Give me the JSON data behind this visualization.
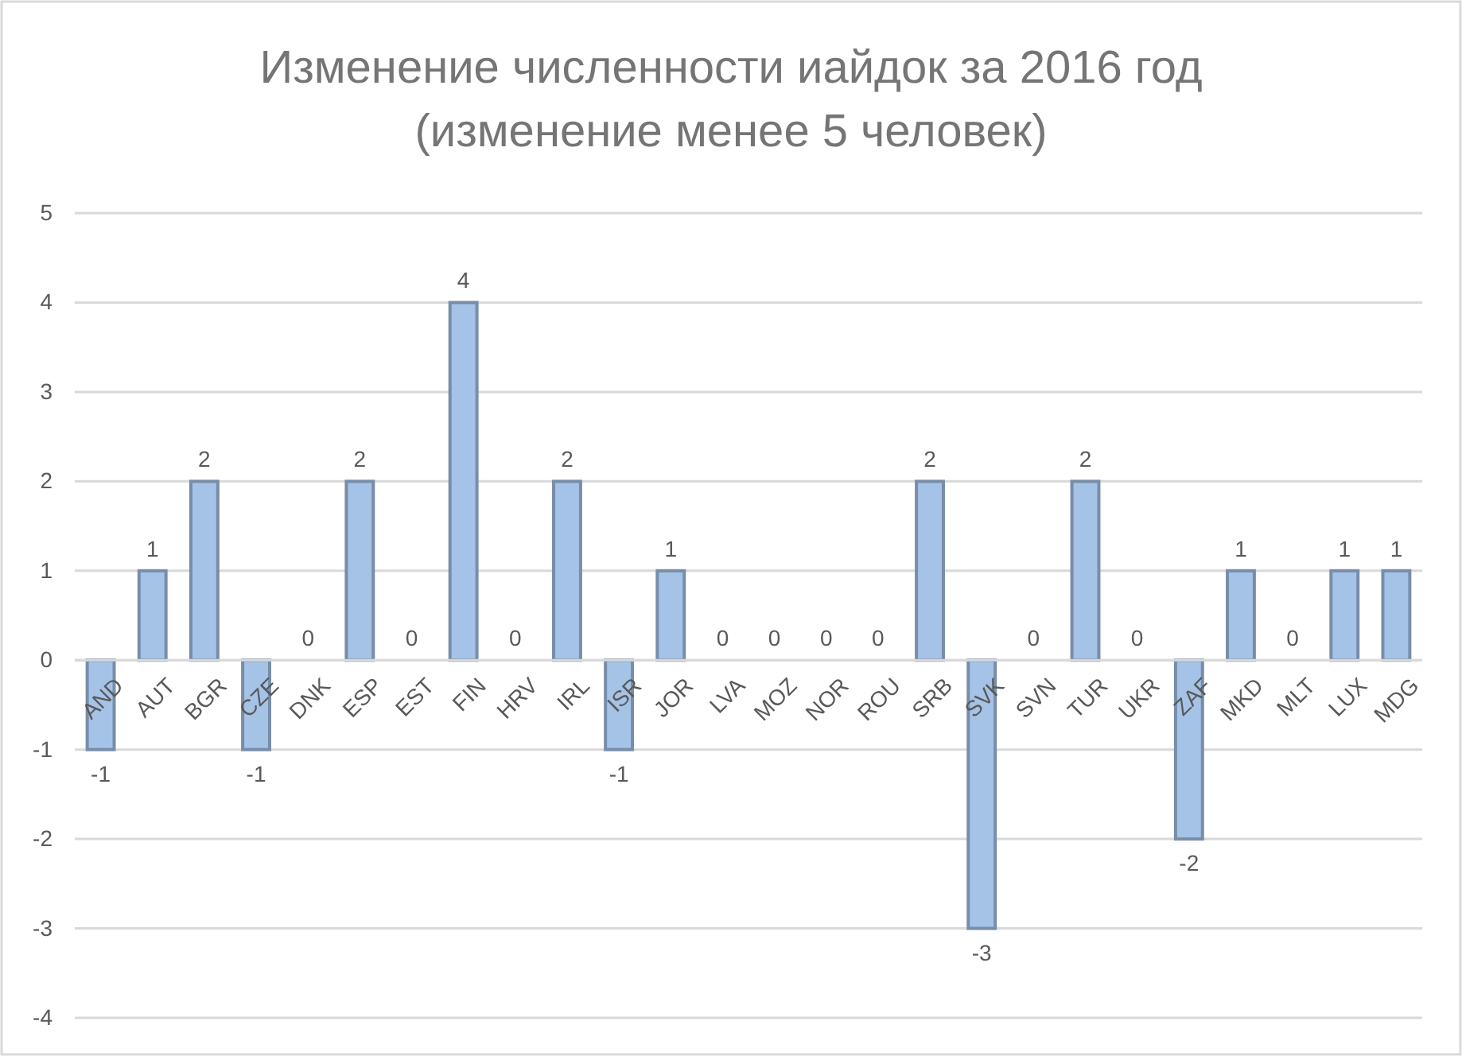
{
  "chart_data": {
    "type": "bar",
    "title": "Изменение численности иайдок за 2016 год (изменение менее 5 человек)",
    "categories": [
      "AND",
      "AUT",
      "BGR",
      "CZE",
      "DNK",
      "ESP",
      "EST",
      "FIN",
      "HRV",
      "IRL",
      "ISR",
      "JOR",
      "LVA",
      "MOZ",
      "NOR",
      "ROU",
      "SRB",
      "SVK",
      "SVN",
      "TUR",
      "UKR",
      "ZAF",
      "MKD",
      "MLT",
      "LUX",
      "MDG"
    ],
    "values": [
      -1,
      1,
      2,
      -1,
      0,
      2,
      0,
      4,
      0,
      2,
      -1,
      1,
      0,
      0,
      0,
      0,
      2,
      -3,
      0,
      2,
      0,
      -2,
      1,
      0,
      1,
      1
    ],
    "color": "#a5c3e7",
    "ylim": [
      -4,
      5
    ],
    "yticks": [
      -4,
      -3,
      -2,
      -1,
      0,
      1,
      2,
      3,
      4,
      5
    ],
    "grid": "y",
    "data_labels": true
  }
}
